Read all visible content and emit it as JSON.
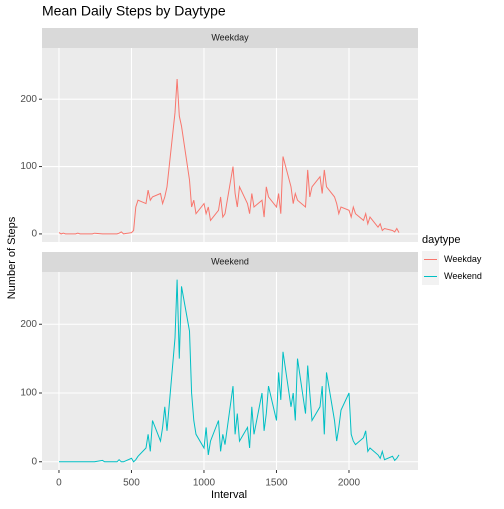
{
  "chart_data": {
    "type": "line",
    "title": "Mean Daily Steps by Daytype",
    "xlabel": "Interval",
    "ylabel": "Number of Steps",
    "legend_title": "daytype",
    "x": [
      0,
      15,
      30,
      45,
      100,
      115,
      130,
      145,
      200,
      215,
      230,
      245,
      300,
      315,
      330,
      345,
      400,
      415,
      430,
      445,
      500,
      515,
      530,
      545,
      600,
      615,
      630,
      645,
      700,
      715,
      730,
      745,
      800,
      815,
      830,
      845,
      900,
      915,
      930,
      945,
      1000,
      1015,
      1030,
      1045,
      1100,
      1115,
      1130,
      1145,
      1200,
      1215,
      1230,
      1245,
      1300,
      1315,
      1330,
      1345,
      1400,
      1415,
      1430,
      1445,
      1500,
      1515,
      1530,
      1545,
      1600,
      1615,
      1630,
      1645,
      1700,
      1715,
      1730,
      1745,
      1800,
      1815,
      1830,
      1845,
      1900,
      1915,
      1930,
      1945,
      2000,
      2015,
      2030,
      2045,
      2100,
      2115,
      2130,
      2145,
      2200,
      2215,
      2230,
      2245,
      2300,
      2315,
      2330,
      2345
    ],
    "series": [
      {
        "name": "Weekday",
        "color": "#F8766D",
        "values": [
          2,
          0,
          1,
          0,
          0,
          0,
          1,
          0,
          0,
          0,
          0,
          1,
          0,
          0,
          0,
          0,
          0,
          1,
          3,
          0,
          2,
          5,
          40,
          50,
          45,
          65,
          50,
          55,
          60,
          45,
          55,
          70,
          180,
          230,
          175,
          160,
          80,
          40,
          50,
          30,
          45,
          30,
          40,
          20,
          35,
          55,
          25,
          30,
          100,
          60,
          40,
          70,
          45,
          30,
          60,
          40,
          50,
          25,
          70,
          55,
          40,
          60,
          30,
          115,
          70,
          45,
          60,
          50,
          40,
          95,
          55,
          70,
          85,
          60,
          95,
          70,
          55,
          45,
          30,
          40,
          35,
          25,
          40,
          30,
          20,
          30,
          15,
          25,
          10,
          15,
          5,
          8,
          5,
          3,
          8,
          2
        ]
      },
      {
        "name": "Weekend",
        "color": "#00BFC4",
        "values": [
          0,
          0,
          0,
          0,
          0,
          0,
          0,
          0,
          0,
          0,
          0,
          0,
          2,
          0,
          0,
          0,
          0,
          3,
          0,
          0,
          5,
          0,
          3,
          8,
          20,
          40,
          15,
          60,
          30,
          50,
          80,
          45,
          180,
          265,
          150,
          255,
          190,
          100,
          60,
          40,
          20,
          50,
          10,
          30,
          60,
          15,
          40,
          25,
          110,
          40,
          70,
          30,
          50,
          20,
          80,
          40,
          100,
          45,
          70,
          110,
          60,
          130,
          90,
          160,
          80,
          100,
          60,
          150,
          70,
          140,
          100,
          60,
          80,
          110,
          40,
          130,
          60,
          30,
          50,
          75,
          100,
          40,
          30,
          25,
          35,
          45,
          15,
          20,
          10,
          5,
          15,
          3,
          8,
          2,
          5,
          10
        ]
      }
    ],
    "xlim": [
      -117,
      2476
    ],
    "xticks": [
      0,
      500,
      1000,
      1500,
      2000
    ],
    "ylim": [
      -12,
      276
    ],
    "yticks": [
      0,
      100,
      200
    ],
    "grid": true,
    "legend": "right"
  }
}
